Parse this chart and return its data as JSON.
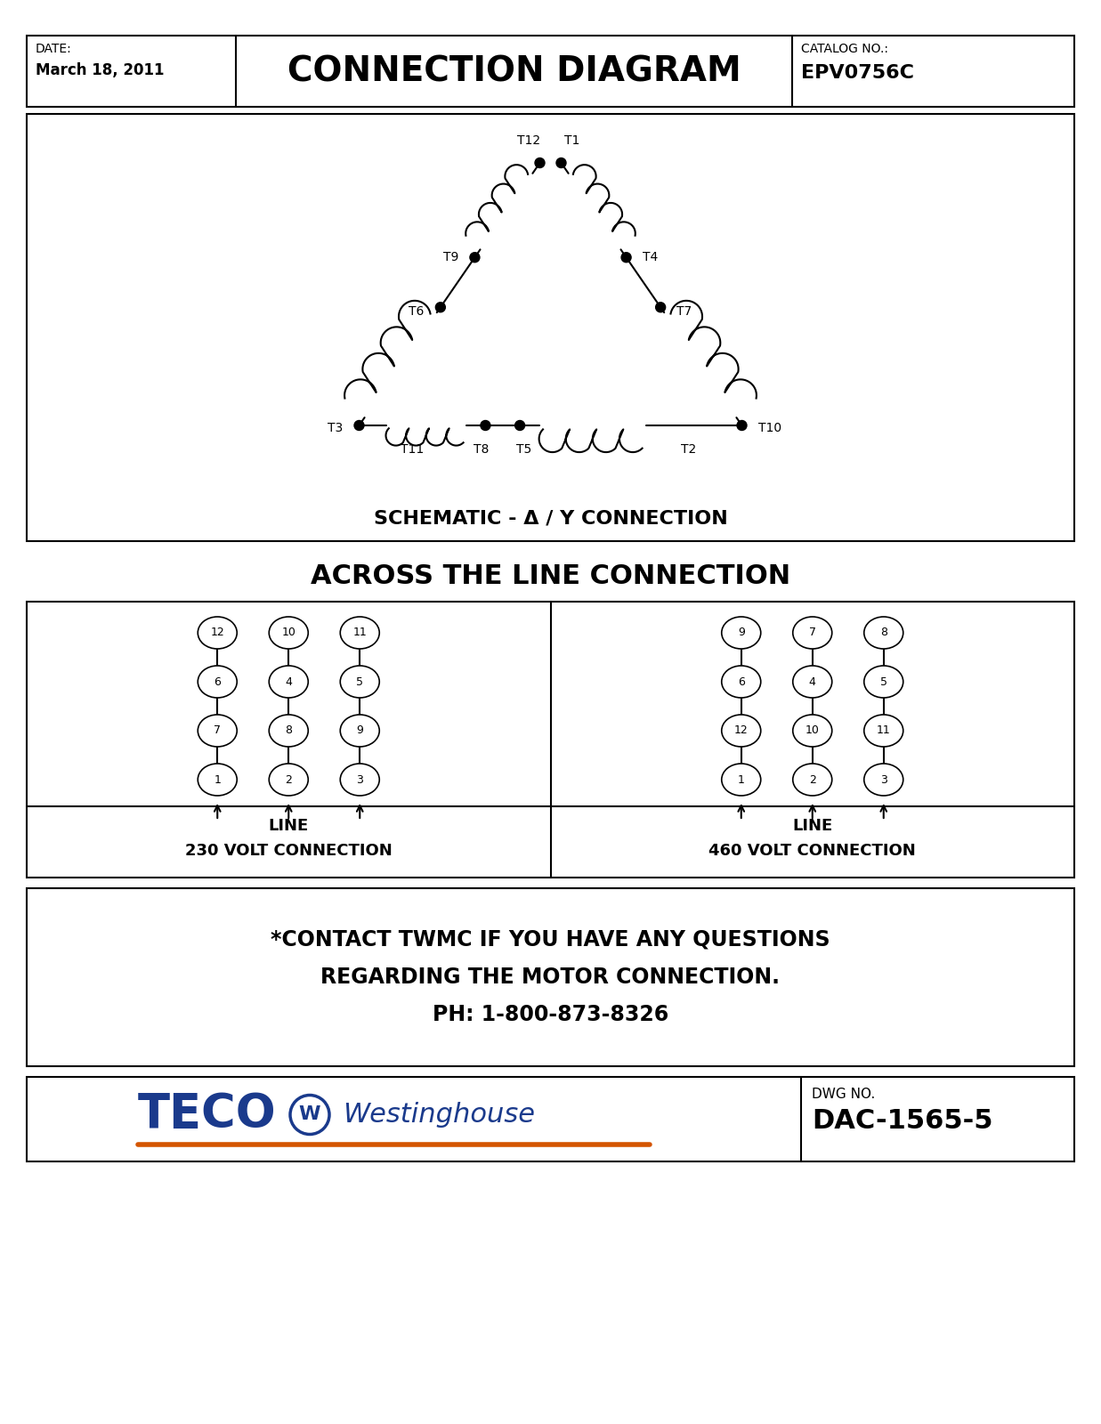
{
  "bg_color": "#ffffff",
  "border_color": "#000000",
  "title_header": "CONNECTION DIAGRAM",
  "date_label": "DATE:",
  "date_value": "March 18, 2011",
  "catalog_label": "CATALOG NO.:",
  "catalog_value": "EPV0756C",
  "schematic_title": "SCHEMATIC - Δ / Y CONNECTION",
  "across_line_title": "ACROSS THE LINE CONNECTION",
  "contact_text_line1": "*CONTACT TWMC IF YOU HAVE ANY QUESTIONS",
  "contact_text_line2": "REGARDING THE MOTOR CONNECTION.",
  "contact_text_line3": "PH: 1-800-873-8326",
  "dwg_label": "DWG NO.",
  "dwg_value": "DAC-1565-5",
  "line_230_label1": "LINE",
  "line_230_label2": "230 VOLT CONNECTION",
  "line_460_label1": "LINE",
  "line_460_label2": "460 VOLT CONNECTION",
  "teco_color": "#1a3a8c",
  "orange_color": "#d45500",
  "row_labels_230": [
    [
      "12",
      "6",
      "7",
      "1"
    ],
    [
      "10",
      "4",
      "8",
      "2"
    ],
    [
      "11",
      "5",
      "9",
      "3"
    ]
  ],
  "row_labels_460": [
    [
      "9",
      "6",
      "12",
      "1"
    ],
    [
      "7",
      "4",
      "10",
      "2"
    ],
    [
      "8",
      "5",
      "11",
      "3"
    ]
  ]
}
